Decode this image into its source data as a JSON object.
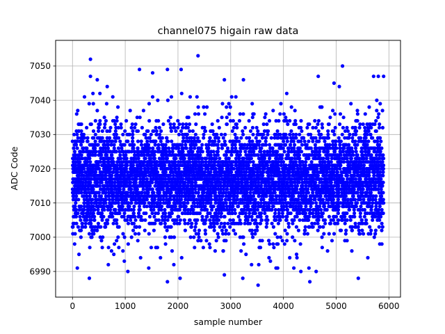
{
  "chart_data": {
    "type": "scatter",
    "title": "channel075 higain raw data",
    "xlabel": "sample number",
    "ylabel": "ADC Code",
    "xlim": [
      -320,
      6220
    ],
    "ylim": [
      6982.5,
      7057.5
    ],
    "xticks": [
      0,
      1000,
      2000,
      3000,
      4000,
      5000,
      6000
    ],
    "yticks": [
      6990,
      7000,
      7010,
      7020,
      7030,
      7040,
      7050
    ],
    "grid": true,
    "marker_color": "#0000ff",
    "n_samples": 5900,
    "baseline": 7017,
    "spread": 8,
    "random_seed": 75,
    "notable_points": [
      {
        "x": 340,
        "y": 7052
      },
      {
        "x": 2380,
        "y": 7053
      },
      {
        "x": 5120,
        "y": 7050
      },
      {
        "x": 1800,
        "y": 7049
      },
      {
        "x": 1270,
        "y": 7049
      },
      {
        "x": 2060,
        "y": 7049
      },
      {
        "x": 1520,
        "y": 7048
      },
      {
        "x": 340,
        "y": 7047
      },
      {
        "x": 4660,
        "y": 7047
      },
      {
        "x": 5710,
        "y": 7047
      },
      {
        "x": 5900,
        "y": 7047
      },
      {
        "x": 5800,
        "y": 7047
      },
      {
        "x": 470,
        "y": 7046
      },
      {
        "x": 2880,
        "y": 7046
      },
      {
        "x": 4960,
        "y": 7045
      },
      {
        "x": 5060,
        "y": 7044
      },
      {
        "x": 320,
        "y": 6988
      },
      {
        "x": 1800,
        "y": 6987
      },
      {
        "x": 2040,
        "y": 6988
      },
      {
        "x": 2880,
        "y": 6989
      },
      {
        "x": 3230,
        "y": 6988
      },
      {
        "x": 3520,
        "y": 6986
      },
      {
        "x": 4330,
        "y": 6990
      },
      {
        "x": 4500,
        "y": 6987
      },
      {
        "x": 5420,
        "y": 6988
      },
      {
        "x": 1050,
        "y": 6990
      },
      {
        "x": 3860,
        "y": 6991
      },
      {
        "x": 4120,
        "y": 6994
      },
      {
        "x": 4620,
        "y": 6990
      },
      {
        "x": 5600,
        "y": 6994
      },
      {
        "x": 680,
        "y": 6992
      }
    ]
  }
}
